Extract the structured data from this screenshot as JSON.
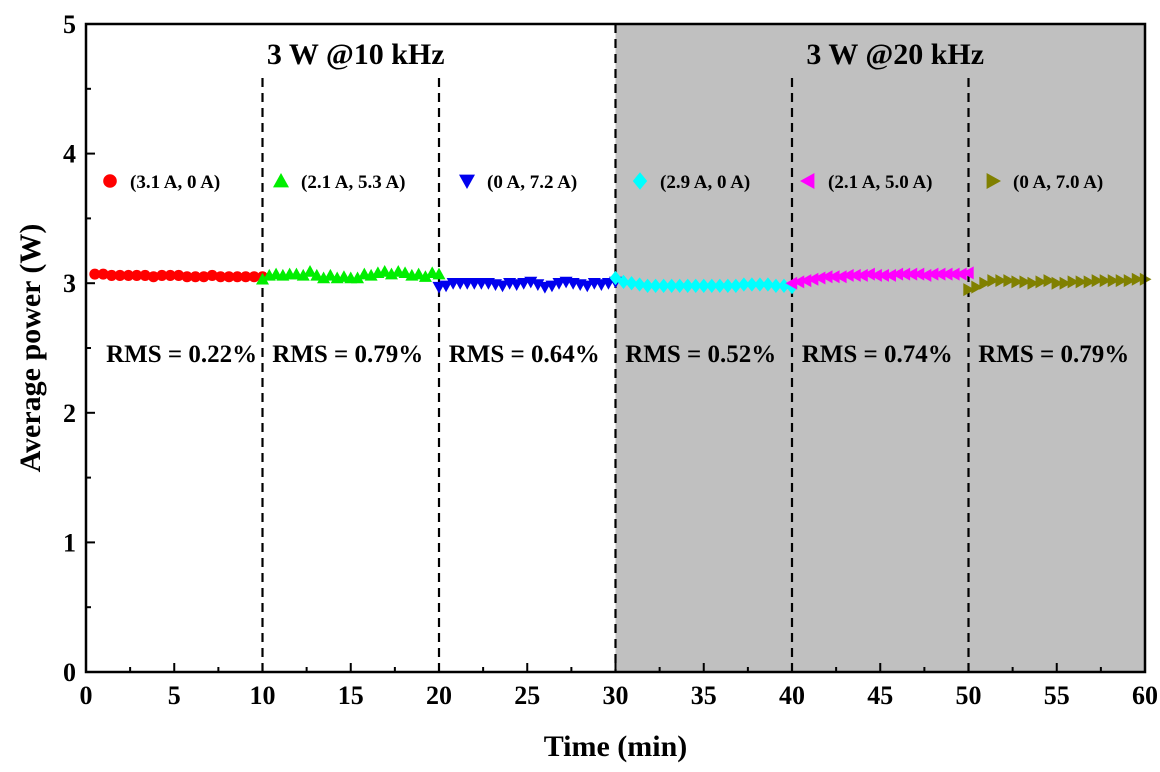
{
  "chart_data": {
    "type": "scatter",
    "xlabel": "Time (min)",
    "ylabel": "Average power (W)",
    "xlim": [
      0,
      60
    ],
    "ylim": [
      0,
      5
    ],
    "x_ticks": [
      "0",
      "5",
      "10",
      "15",
      "20",
      "25",
      "30",
      "35",
      "40",
      "45",
      "50",
      "55",
      "60"
    ],
    "y_ticks": [
      "0",
      "1",
      "2",
      "3",
      "4",
      "5"
    ],
    "grid": false,
    "shaded_range": [
      30,
      60
    ],
    "shaded_color": "#c0c0c0",
    "dividers": [
      10,
      20,
      30,
      40,
      50
    ],
    "regions": [
      {
        "label": "3 W @10 kHz",
        "x_range": [
          0,
          30
        ]
      },
      {
        "label": "3 W @20 kHz",
        "x_range": [
          30,
          60
        ]
      }
    ],
    "series": [
      {
        "name": "(3.1 A, 0 A)",
        "marker": "circle",
        "color": "#ff0000",
        "x_start": 0.5,
        "x_end": 10,
        "rms": "RMS = 0.22%",
        "values": [
          3.07,
          3.07,
          3.06,
          3.06,
          3.06,
          3.06,
          3.06,
          3.05,
          3.06,
          3.06,
          3.06,
          3.05,
          3.05,
          3.05,
          3.06,
          3.05,
          3.05,
          3.05,
          3.05,
          3.05,
          3.05
        ]
      },
      {
        "name": "(2.1 A, 5.3 A)",
        "marker": "triangle-up",
        "color": "#00ee00",
        "x_start": 10,
        "x_end": 20,
        "rms": "RMS = 0.79%",
        "values": [
          3.03,
          3.06,
          3.07,
          3.06,
          3.07,
          3.07,
          3.06,
          3.09,
          3.06,
          3.04,
          3.06,
          3.04,
          3.05,
          3.04,
          3.04,
          3.07,
          3.06,
          3.08,
          3.09,
          3.07,
          3.09,
          3.08,
          3.06,
          3.07,
          3.05,
          3.08,
          3.07
        ]
      },
      {
        "name": "(0 A, 7.2 A)",
        "marker": "triangle-down",
        "color": "#0000ee",
        "x_start": 20,
        "x_end": 30,
        "rms": "RMS = 0.64%",
        "values": [
          2.97,
          2.98,
          3.0,
          3.0,
          3.0,
          3.0,
          3.0,
          3.0,
          2.99,
          2.98,
          3.0,
          2.99,
          3.0,
          3.01,
          2.99,
          2.97,
          2.98,
          3.0,
          3.01,
          3.0,
          2.99,
          2.98,
          3.0,
          2.99,
          3.0,
          3.01
        ]
      },
      {
        "name": "(2.9 A, 0 A)",
        "marker": "diamond",
        "color": "#00ffff",
        "x_start": 30,
        "x_end": 40,
        "rms": "RMS = 0.52%",
        "values": [
          3.04,
          3.01,
          3.0,
          2.99,
          2.98,
          2.98,
          2.98,
          2.98,
          2.98,
          2.98,
          2.98,
          2.98,
          2.98,
          2.98,
          2.98,
          2.98,
          2.99,
          2.99,
          2.99,
          2.99,
          2.98,
          2.98,
          2.97
        ]
      },
      {
        "name": "(2.1 A, 5.0 A)",
        "marker": "triangle-left",
        "color": "#ff00ff",
        "x_start": 40,
        "x_end": 50,
        "rms": "RMS = 0.74%",
        "values": [
          3.0,
          3.01,
          3.02,
          3.03,
          3.04,
          3.05,
          3.05,
          3.05,
          3.06,
          3.06,
          3.06,
          3.07,
          3.06,
          3.06,
          3.06,
          3.07,
          3.07,
          3.07,
          3.07,
          3.06,
          3.07,
          3.07,
          3.07,
          3.07,
          3.07,
          3.08
        ]
      },
      {
        "name": "(0 A, 7.0 A)",
        "marker": "triangle-right",
        "color": "#808000",
        "x_start": 50,
        "x_end": 60,
        "rms": "RMS = 0.79%",
        "values": [
          2.95,
          2.97,
          3.0,
          3.02,
          3.02,
          3.02,
          3.01,
          3.01,
          3.0,
          3.01,
          3.02,
          3.0,
          3.0,
          3.01,
          3.01,
          3.01,
          3.02,
          3.02,
          3.02,
          3.02,
          3.02,
          3.03,
          3.03
        ]
      }
    ]
  }
}
